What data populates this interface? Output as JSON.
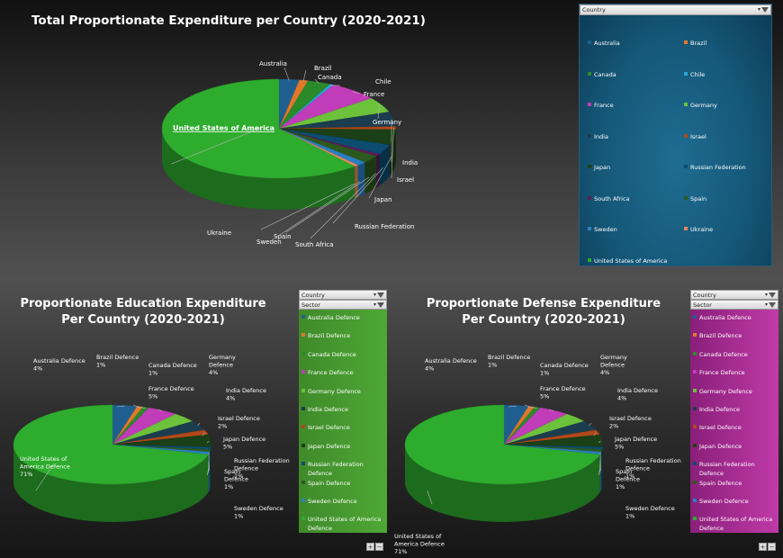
{
  "colors": {
    "Australia": "#1f5f8f",
    "Brazil": "#e0782c",
    "Canada": "#2a8a2a",
    "Chile": "#24a8d8",
    "France": "#c03cb8",
    "Germany": "#6cc23a",
    "India": "#1b3d4f",
    "Israel": "#b0481a",
    "Japan": "#1b3f16",
    "Russian Federation": "#0c4c70",
    "South Africa": "#5a1e58",
    "Spain": "#2c5a1e",
    "Sweden": "#2a7fc4",
    "Ukraine": "#e08a5a",
    "United States of America": "#2eac2e"
  },
  "chart_data": [
    {
      "type": "pie",
      "title": "Total Proportionate Expenditure per Country (2020-2021)",
      "labels": [
        "Australia",
        "Brazil",
        "Canada",
        "Chile",
        "France",
        "Germany",
        "India",
        "Israel",
        "Japan",
        "Russian Federation",
        "South Africa",
        "Spain",
        "Sweden",
        "Ukraine",
        "United States of America"
      ],
      "values": [
        2.8,
        1.2,
        3.2,
        0.5,
        6.8,
        5.0,
        4.8,
        1.0,
        5.0,
        3.3,
        0.8,
        2.5,
        1.3,
        0.6,
        61.2
      ]
    },
    {
      "type": "pie",
      "title": "Proportionate Education Expenditure Per Country (2020-2021)",
      "labels": [
        "Australia Defence",
        "Brazil Defence",
        "Canada Defence",
        "France Defence",
        "Germany Defence",
        "India Defence",
        "Israel Defence",
        "Japan Defence",
        "Russian Federation Defence",
        "Spain Defence",
        "Sweden Defence",
        "United States of America Defence"
      ],
      "values": [
        4,
        1,
        1,
        5,
        4,
        4,
        2,
        5,
        1,
        1,
        1,
        71
      ],
      "value_labels": [
        "4%",
        "1%",
        "1%",
        "5%",
        "4%",
        "4%",
        "2%",
        "5%",
        "1%",
        "1%",
        "1%",
        "71%"
      ]
    },
    {
      "type": "pie",
      "title": "Proportionate Defense Expenditure Per Country (2020-2021)",
      "labels": [
        "Australia Defence",
        "Brazil Defence",
        "Canada Defence",
        "France Defence",
        "Germany Defence",
        "India Defence",
        "Israel Defence",
        "Japan Defence",
        "Russian Federation Defence",
        "Spain Defence",
        "Sweden Defence",
        "United States of America Defence"
      ],
      "values": [
        4,
        1,
        1,
        5,
        4,
        4,
        2,
        5,
        1,
        1,
        1,
        71
      ],
      "value_labels": [
        "4%",
        "1%",
        "1%",
        "5%",
        "4%",
        "4%",
        "2%",
        "5%",
        "1%",
        "1%",
        "1%",
        "71%"
      ]
    }
  ],
  "charts": [
    {
      "title_line1": "Total Proportionate Expenditure per Country (2020-2021)",
      "title_line2": "",
      "label_lines": [
        [
          "Australia"
        ],
        [
          "Brazil"
        ],
        [
          "Canada"
        ],
        [
          "Chile"
        ],
        [
          "France"
        ],
        [
          "Germany"
        ],
        [
          "India"
        ],
        [
          "Israel"
        ],
        [
          "Japan"
        ],
        [
          "Russian Federation"
        ],
        [
          "South Africa"
        ],
        [
          "Spain"
        ],
        [
          "Sweden"
        ],
        [
          "Ukraine"
        ],
        [
          "United States of America"
        ]
      ]
    },
    {
      "title_line1": "Proportionate Education Expenditure",
      "title_line2": "Per Country (2020-2021)",
      "label_lines": [
        [
          "Australia Defence",
          "4%"
        ],
        [
          "Brazil Defence",
          "1%"
        ],
        [
          "Canada Defence",
          "1%"
        ],
        [
          "France Defence",
          "5%"
        ],
        [
          "Germany",
          "Defence",
          "4%"
        ],
        [
          "India Defence",
          "4%"
        ],
        [
          "Israel Defence",
          "2%"
        ],
        [
          "Japan Defence",
          "5%"
        ],
        [
          "Russian Federation",
          "Defence",
          "1%"
        ],
        [
          "Spain",
          "Defence",
          "1%"
        ],
        [
          "Sweden Defence",
          "1%"
        ],
        [
          "United States of",
          "America Defence",
          "71%"
        ]
      ]
    },
    {
      "title_line1": "Proportionate Defense Expenditure",
      "title_line2": "Per Country (2020-2021)",
      "label_lines": [
        [
          "Australia Defence",
          "4%"
        ],
        [
          "Brazil Defence",
          "1%"
        ],
        [
          "Canada Defence",
          "1%"
        ],
        [
          "France Defence",
          "5%"
        ],
        [
          "Germany",
          "Defence",
          "4%"
        ],
        [
          "India Defence",
          "4%"
        ],
        [
          "Israel Defence",
          "2%"
        ],
        [
          "Japan Defence",
          "5%"
        ],
        [
          "Russian Federation",
          "Defence",
          "1%"
        ],
        [
          "Spain",
          "Defence",
          "1%"
        ],
        [
          "Sweden Defence",
          "1%"
        ],
        [
          "United States of",
          "America Defence",
          "71%"
        ]
      ]
    }
  ],
  "slicers": {
    "country_top": {
      "header": "Country",
      "items": [
        "Australia",
        "Brazil",
        "Canada",
        "Chile",
        "France",
        "Germany",
        "India",
        "Israel",
        "Japan",
        "Russian Federation",
        "South Africa",
        "Spain",
        "Sweden",
        "Ukraine",
        "United States of America"
      ]
    },
    "edu": {
      "country_header": "Country",
      "sector_header": "Sector",
      "items": [
        "Australia Defence",
        "Brazil Defence",
        "Canada Defence",
        "France Defence",
        "Germany Defence",
        "India Defence",
        "Israel Defence",
        "Japan Defence",
        "Russian Federation Defence",
        "Spain Defence",
        "Sweden Defence",
        "United States of America Defence"
      ]
    },
    "def": {
      "country_header": "Country",
      "sector_header": "Sector",
      "items": [
        "Australia Defence",
        "Brazil Defence",
        "Canada Defence",
        "France Defence",
        "Germany Defence",
        "India Defence",
        "Israel Defence",
        "Japan Defence",
        "Russian Federation Defence",
        "Spain Defence",
        "Sweden Defence",
        "United States of America Defence"
      ]
    }
  },
  "zoom": {
    "plus": "+",
    "minus": "−"
  }
}
